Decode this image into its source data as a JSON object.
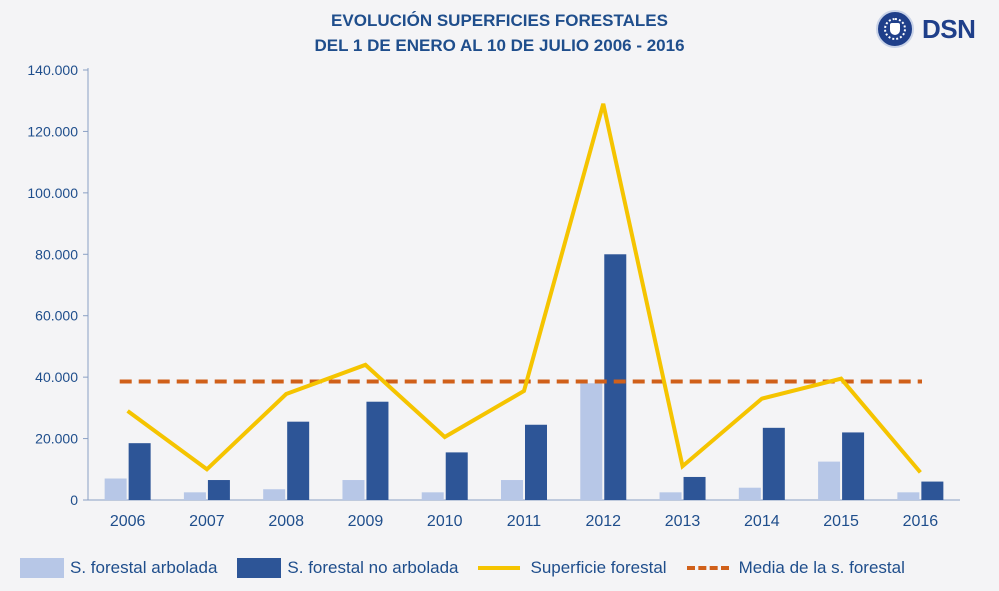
{
  "title_line1": "EVOLUCIÓN SUPERFICIES FORESTALES",
  "title_line2": "DEL 1 DE ENERO AL 10 DE JULIO 2006 - 2016",
  "logo": {
    "text": "DSN",
    "icon": "government-seal-icon"
  },
  "colors": {
    "arbolada": "#b7c7e7",
    "no_arbolada": "#2d5597",
    "superficie": "#f5c400",
    "media": "#d0601a",
    "axis_text": "#1f4e8c"
  },
  "chart_data": {
    "type": "bar",
    "categories": [
      "2006",
      "2007",
      "2008",
      "2009",
      "2010",
      "2011",
      "2012",
      "2013",
      "2014",
      "2015",
      "2016"
    ],
    "series": [
      {
        "name": "S. forestal arbolada",
        "kind": "bar",
        "values": [
          7000,
          2500,
          3500,
          6500,
          2500,
          6500,
          38000,
          2500,
          4000,
          12500,
          2500
        ]
      },
      {
        "name": "S. forestal no arbolada",
        "kind": "bar",
        "values": [
          18500,
          6500,
          25500,
          32000,
          15500,
          24500,
          80000,
          7500,
          23500,
          22000,
          6000
        ]
      },
      {
        "name": "Superficie forestal",
        "kind": "line",
        "values": [
          29000,
          10000,
          34500,
          44000,
          20500,
          35500,
          129000,
          11000,
          33000,
          39500,
          9000
        ]
      },
      {
        "name": "Media de la s. forestal",
        "kind": "dashed-line",
        "values": [
          38600,
          38600,
          38600,
          38600,
          38600,
          38600,
          38600,
          38600,
          38600,
          38600,
          38600
        ]
      }
    ],
    "y_ticks": [
      "0",
      "20.000",
      "40.000",
      "60.000",
      "80.000",
      "100.000",
      "120.000",
      "140.000"
    ],
    "ylim": [
      0,
      140000
    ],
    "grid": false,
    "legend_position": "bottom"
  }
}
